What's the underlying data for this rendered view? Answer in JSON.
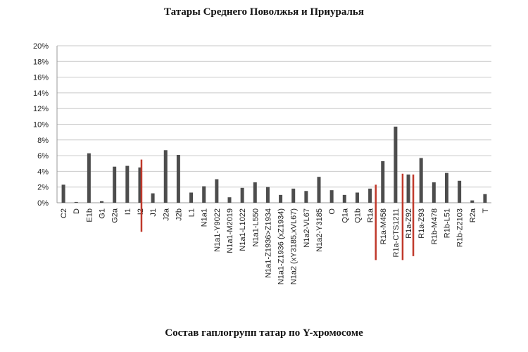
{
  "chart_data": {
    "type": "bar",
    "title": "Татары Среднего Поволжья и Приуралья",
    "caption": "Состав гаплогрупп татар по Y-хромосоме",
    "xlabel": "",
    "ylabel": "",
    "ylim": [
      0,
      20
    ],
    "yticks": [
      "0%",
      "2%",
      "4%",
      "6%",
      "8%",
      "10%",
      "12%",
      "14%",
      "16%",
      "18%",
      "20%"
    ],
    "grid": true,
    "legend": "none",
    "categories": [
      "C2",
      "D",
      "E1b",
      "G1",
      "G2a",
      "I1",
      "I2",
      "J1",
      "J2a",
      "J2b",
      "L1",
      "N1a1",
      "N1a1-Y9022",
      "N1a1-M2019",
      "N1a1-L1022",
      "N1a1-L550",
      "N1a1-Z1936>Z1934",
      "N1a1-Z1936 (xZ1934)",
      "N1a2 (xY3185,xVL67)",
      "N1a2-VL67",
      "N1a2-Y3185",
      "O",
      "Q1a",
      "Q1b",
      "R1a",
      "R1a-M458",
      "R1a-CTS1211",
      "R1a-Z92",
      "R1a-Z93",
      "R1b-M478",
      "R1b-L51",
      "R1b-Z2103",
      "R2a",
      "T"
    ],
    "values": [
      2.3,
      0.1,
      6.3,
      0.2,
      4.6,
      4.7,
      4.5,
      1.2,
      6.7,
      6.1,
      1.3,
      2.1,
      3.0,
      0.7,
      1.9,
      2.6,
      2.0,
      1.0,
      1.8,
      1.5,
      3.3,
      1.6,
      1.0,
      1.3,
      1.8,
      5.3,
      9.7,
      3.6,
      5.7,
      2.6,
      3.8,
      2.8,
      0.3,
      1.1
    ],
    "highlight_lines": [
      {
        "category": "I2",
        "top": 5.5,
        "bottom": -3.7
      },
      {
        "category": "R1a-M458",
        "top": 2.3,
        "bottom": -7.3
      },
      {
        "category": "R1a-CTS1211",
        "top": 3.7,
        "bottom": -7.3
      },
      {
        "category": "R1a-Z92",
        "top": 3.6,
        "bottom": -6.8
      }
    ],
    "colors": {
      "bar": "#4d4d4d",
      "grid": "#c9c9c9",
      "highlight": "#c0392b",
      "axis": "#9a9a9a"
    }
  }
}
